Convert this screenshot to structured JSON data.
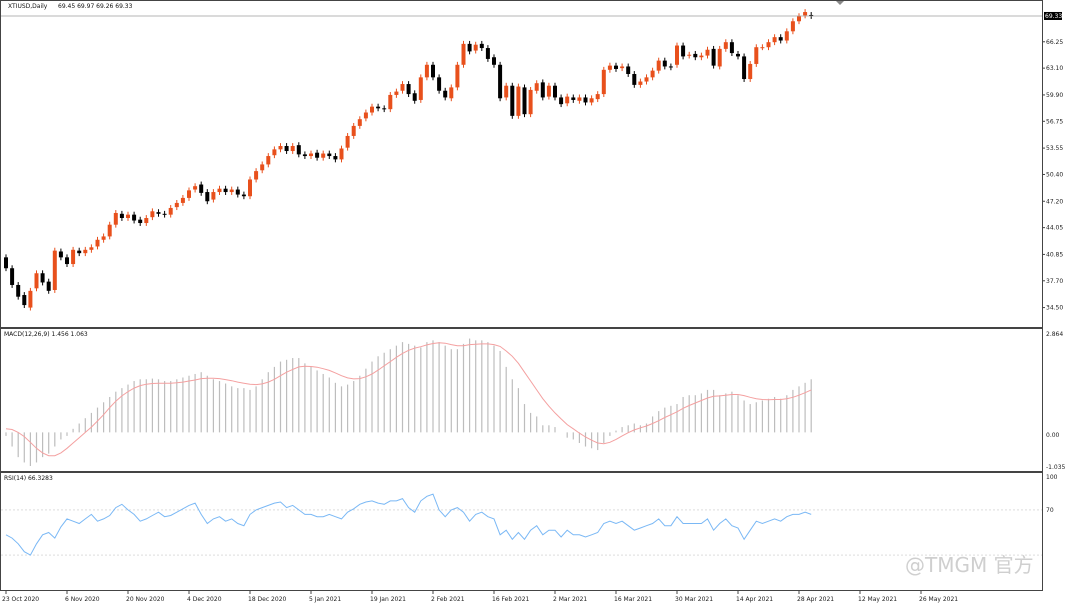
{
  "chart_data": {
    "type": "candlestick",
    "symbol_label": "XTIUSD,Daily",
    "ohlc_label": "69.45 69.97 69.26 69.33",
    "current_price_label": "69.33",
    "colors": {
      "up": "#e8501c",
      "down": "#000000",
      "macd_hist": "#bdbdbd",
      "macd_signal": "#f4a0a0",
      "rsi_line": "#7ab8f5",
      "current_line": "#9e9e9e"
    },
    "price_axis": {
      "ticks": [
        "66.25",
        "63.10",
        "59.90",
        "56.75",
        "53.55",
        "50.40",
        "47.20",
        "44.05",
        "40.85",
        "37.70",
        "34.50"
      ],
      "range": [
        32.3,
        71.0
      ]
    },
    "candles": [
      [
        40.5,
        39.2
      ],
      [
        39.2,
        37.2
      ],
      [
        37.2,
        35.8
      ],
      [
        36.0,
        34.8
      ],
      [
        34.5,
        36.5
      ],
      [
        36.8,
        38.6
      ],
      [
        38.6,
        37.5
      ],
      [
        37.6,
        36.5
      ],
      [
        36.6,
        41.3
      ],
      [
        41.2,
        40.5
      ],
      [
        40.5,
        39.7
      ],
      [
        39.7,
        41.4
      ],
      [
        41.3,
        41.0
      ],
      [
        41.0,
        41.4
      ],
      [
        41.4,
        41.7
      ],
      [
        41.8,
        42.6
      ],
      [
        42.6,
        43.0
      ],
      [
        43.0,
        44.4
      ],
      [
        44.4,
        45.8
      ],
      [
        45.7,
        45.2
      ],
      [
        45.2,
        45.6
      ],
      [
        45.6,
        44.9
      ],
      [
        45.0,
        44.6
      ],
      [
        44.6,
        45.2
      ],
      [
        45.3,
        46.0
      ],
      [
        45.9,
        45.7
      ],
      [
        45.7,
        45.6
      ],
      [
        45.6,
        46.4
      ],
      [
        46.5,
        47.0
      ],
      [
        47.0,
        47.6
      ],
      [
        47.6,
        48.5
      ],
      [
        48.6,
        49.0
      ],
      [
        49.2,
        48.2
      ],
      [
        48.3,
        47.2
      ],
      [
        47.4,
        48.3
      ],
      [
        48.3,
        48.7
      ],
      [
        48.7,
        48.3
      ],
      [
        48.3,
        48.6
      ],
      [
        48.6,
        48.0
      ],
      [
        48.0,
        47.8
      ],
      [
        47.8,
        49.8
      ],
      [
        49.8,
        50.8
      ],
      [
        50.9,
        51.6
      ],
      [
        51.6,
        52.6
      ],
      [
        52.7,
        53.4
      ],
      [
        53.4,
        53.8
      ],
      [
        53.8,
        53.2
      ],
      [
        53.2,
        53.8
      ],
      [
        53.9,
        52.8
      ],
      [
        52.8,
        52.6
      ],
      [
        52.6,
        52.9
      ],
      [
        53.0,
        52.4
      ],
      [
        52.4,
        52.9
      ],
      [
        52.9,
        52.6
      ],
      [
        52.6,
        52.2
      ],
      [
        52.2,
        53.5
      ],
      [
        53.6,
        55.0
      ],
      [
        55.0,
        56.2
      ],
      [
        56.2,
        57.0
      ],
      [
        57.1,
        57.8
      ],
      [
        57.8,
        58.5
      ],
      [
        58.5,
        58.3
      ],
      [
        58.3,
        58.2
      ],
      [
        58.2,
        59.9
      ],
      [
        59.9,
        60.3
      ],
      [
        60.4,
        61.2
      ],
      [
        61.2,
        60.0
      ],
      [
        60.1,
        59.2
      ],
      [
        59.3,
        62.0
      ],
      [
        62.0,
        63.5
      ],
      [
        63.5,
        62.0
      ],
      [
        62.0,
        60.4
      ],
      [
        60.4,
        59.6
      ],
      [
        59.5,
        60.8
      ],
      [
        60.8,
        63.5
      ],
      [
        63.5,
        66.0
      ],
      [
        66.0,
        65.1
      ],
      [
        65.2,
        65.9
      ],
      [
        66.0,
        65.5
      ],
      [
        65.5,
        64.2
      ],
      [
        64.4,
        63.5
      ],
      [
        63.5,
        59.5
      ],
      [
        59.6,
        61.0
      ],
      [
        61.0,
        57.4
      ],
      [
        57.4,
        60.9
      ],
      [
        60.8,
        57.6
      ],
      [
        57.6,
        60.5
      ],
      [
        60.4,
        61.3
      ],
      [
        61.4,
        59.6
      ],
      [
        59.7,
        61.0
      ],
      [
        61.0,
        59.6
      ],
      [
        59.6,
        58.8
      ],
      [
        58.9,
        59.7
      ],
      [
        59.6,
        59.3
      ],
      [
        59.2,
        59.6
      ],
      [
        59.6,
        59.0
      ],
      [
        59.0,
        59.5
      ],
      [
        59.4,
        60.0
      ],
      [
        60.0,
        62.9
      ],
      [
        62.9,
        63.4
      ],
      [
        63.4,
        63.0
      ],
      [
        63.1,
        63.3
      ],
      [
        63.3,
        62.4
      ],
      [
        62.4,
        61.1
      ],
      [
        61.1,
        61.5
      ],
      [
        61.5,
        62.0
      ],
      [
        62.0,
        62.8
      ],
      [
        62.8,
        64.0
      ],
      [
        64.0,
        63.3
      ],
      [
        63.3,
        63.2
      ],
      [
        63.5,
        65.8
      ],
      [
        65.8,
        64.5
      ],
      [
        64.6,
        64.7
      ],
      [
        64.8,
        64.4
      ],
      [
        64.4,
        64.6
      ],
      [
        64.6,
        65.3
      ],
      [
        65.4,
        63.4
      ],
      [
        63.3,
        65.4
      ],
      [
        65.4,
        66.2
      ],
      [
        66.2,
        64.9
      ],
      [
        64.8,
        64.5
      ],
      [
        64.5,
        61.8
      ],
      [
        61.8,
        63.6
      ],
      [
        63.6,
        65.6
      ],
      [
        65.6,
        65.6
      ],
      [
        65.6,
        66.2
      ],
      [
        66.2,
        66.8
      ],
      [
        66.8,
        66.4
      ],
      [
        66.4,
        67.5
      ],
      [
        67.5,
        68.7
      ],
      [
        68.7,
        69.3
      ],
      [
        69.4,
        69.8
      ],
      [
        69.45,
        69.33
      ]
    ],
    "macd": {
      "label": "MACD(12,26,9) 1.456 1.063",
      "axis": {
        "top_label": "2.864",
        "zero_label": "0.00",
        "bottom_label": "-1.035",
        "range": [
          -1.035,
          2.864
        ]
      },
      "hist": [
        -0.1,
        -0.4,
        -0.7,
        -0.85,
        -0.95,
        -0.85,
        -0.7,
        -0.6,
        -0.4,
        -0.2,
        -0.1,
        0.1,
        0.25,
        0.4,
        0.55,
        0.7,
        0.85,
        1.0,
        1.15,
        1.25,
        1.35,
        1.45,
        1.5,
        1.5,
        1.52,
        1.5,
        1.45,
        1.45,
        1.5,
        1.55,
        1.6,
        1.65,
        1.7,
        1.6,
        1.5,
        1.45,
        1.38,
        1.3,
        1.25,
        1.25,
        1.2,
        1.3,
        1.5,
        1.7,
        1.85,
        2.0,
        2.05,
        2.1,
        2.1,
        1.95,
        1.85,
        1.75,
        1.65,
        1.55,
        1.4,
        1.3,
        1.35,
        1.45,
        1.6,
        1.8,
        2.0,
        2.15,
        2.25,
        2.35,
        2.45,
        2.55,
        2.5,
        2.45,
        2.4,
        2.55,
        2.6,
        2.55,
        2.45,
        2.35,
        2.35,
        2.5,
        2.65,
        2.6,
        2.6,
        2.55,
        2.45,
        2.3,
        1.85,
        1.5,
        1.25,
        0.8,
        0.55,
        0.45,
        0.2,
        0.2,
        0.15,
        0.0,
        -0.15,
        -0.2,
        -0.3,
        -0.4,
        -0.45,
        -0.5,
        -0.3,
        -0.1,
        0.05,
        0.15,
        0.2,
        0.25,
        0.2,
        0.25,
        0.45,
        0.6,
        0.7,
        0.75,
        0.8,
        1.0,
        1.05,
        1.05,
        1.1,
        1.2,
        1.2,
        1.05,
        1.1,
        1.15,
        1.05,
        0.9,
        0.8,
        0.85,
        0.9,
        0.95,
        1.0,
        0.95,
        1.05,
        1.2,
        1.3,
        1.4,
        1.5
      ],
      "signal": [
        0.1,
        0.08,
        0.0,
        -0.12,
        -0.28,
        -0.45,
        -0.58,
        -0.66,
        -0.66,
        -0.58,
        -0.45,
        -0.3,
        -0.15,
        0.0,
        0.15,
        0.32,
        0.5,
        0.7,
        0.88,
        1.03,
        1.15,
        1.25,
        1.32,
        1.36,
        1.38,
        1.39,
        1.39,
        1.39,
        1.4,
        1.42,
        1.45,
        1.48,
        1.52,
        1.53,
        1.53,
        1.52,
        1.49,
        1.46,
        1.42,
        1.39,
        1.36,
        1.35,
        1.37,
        1.42,
        1.5,
        1.6,
        1.7,
        1.78,
        1.85,
        1.87,
        1.86,
        1.84,
        1.8,
        1.75,
        1.68,
        1.6,
        1.54,
        1.51,
        1.52,
        1.57,
        1.65,
        1.76,
        1.88,
        2.0,
        2.12,
        2.23,
        2.32,
        2.38,
        2.42,
        2.47,
        2.51,
        2.53,
        2.52,
        2.48,
        2.45,
        2.45,
        2.48,
        2.49,
        2.5,
        2.5,
        2.48,
        2.43,
        2.3,
        2.15,
        1.95,
        1.7,
        1.45,
        1.2,
        0.95,
        0.74,
        0.55,
        0.38,
        0.22,
        0.1,
        -0.02,
        -0.13,
        -0.22,
        -0.3,
        -0.32,
        -0.28,
        -0.2,
        -0.1,
        -0.01,
        0.07,
        0.13,
        0.18,
        0.25,
        0.33,
        0.42,
        0.5,
        0.58,
        0.68,
        0.76,
        0.83,
        0.9,
        0.97,
        1.02,
        1.03,
        1.05,
        1.07,
        1.07,
        1.04,
        0.99,
        0.95,
        0.93,
        0.92,
        0.93,
        0.93,
        0.95,
        0.99,
        1.05,
        1.12,
        1.2
      ]
    },
    "rsi": {
      "label": "RSI(14) 66.3283",
      "axis": {
        "top_label": "100",
        "level_label": "70",
        "range": [
          0,
          100
        ]
      },
      "values": [
        48,
        45,
        40,
        33,
        30,
        40,
        48,
        50,
        45,
        55,
        62,
        60,
        58,
        62,
        66,
        60,
        62,
        65,
        72,
        75,
        70,
        66,
        60,
        62,
        65,
        68,
        64,
        65,
        68,
        71,
        74,
        76,
        66,
        58,
        62,
        64,
        60,
        62,
        58,
        56,
        66,
        70,
        72,
        74,
        76,
        77,
        72,
        74,
        70,
        66,
        66,
        64,
        64,
        66,
        64,
        62,
        68,
        71,
        75,
        77,
        78,
        76,
        75,
        78,
        78,
        80,
        72,
        68,
        78,
        82,
        84,
        70,
        64,
        70,
        72,
        68,
        60,
        66,
        68,
        64,
        62,
        48,
        52,
        44,
        50,
        44,
        52,
        56,
        48,
        52,
        52,
        46,
        52,
        48,
        48,
        46,
        48,
        50,
        58,
        60,
        58,
        60,
        56,
        52,
        54,
        56,
        58,
        62,
        56,
        56,
        64,
        58,
        58,
        58,
        58,
        62,
        52,
        58,
        62,
        56,
        54,
        44,
        52,
        60,
        58,
        60,
        62,
        60,
        64,
        66,
        66,
        68,
        66
      ]
    },
    "x_axis": {
      "labels": [
        "23 Oct 2020",
        "6 Nov 2020",
        "20 Nov 2020",
        "4 Dec 2020",
        "18 Dec 2020",
        "5 Jan 2021",
        "19 Jan 2021",
        "2 Feb 2021",
        "16 Feb 2021",
        "2 Mar 2021",
        "16 Mar 2021",
        "30 Mar 2021",
        "14 Apr 2021",
        "28 Apr 2021",
        "12 May 2021",
        "26 May 2021"
      ],
      "label_bar_index": [
        0,
        10,
        20,
        30,
        40,
        50,
        60,
        70,
        80,
        90,
        100,
        110,
        120,
        130,
        140,
        150
      ]
    }
  },
  "watermark": "@TMGM 官方"
}
